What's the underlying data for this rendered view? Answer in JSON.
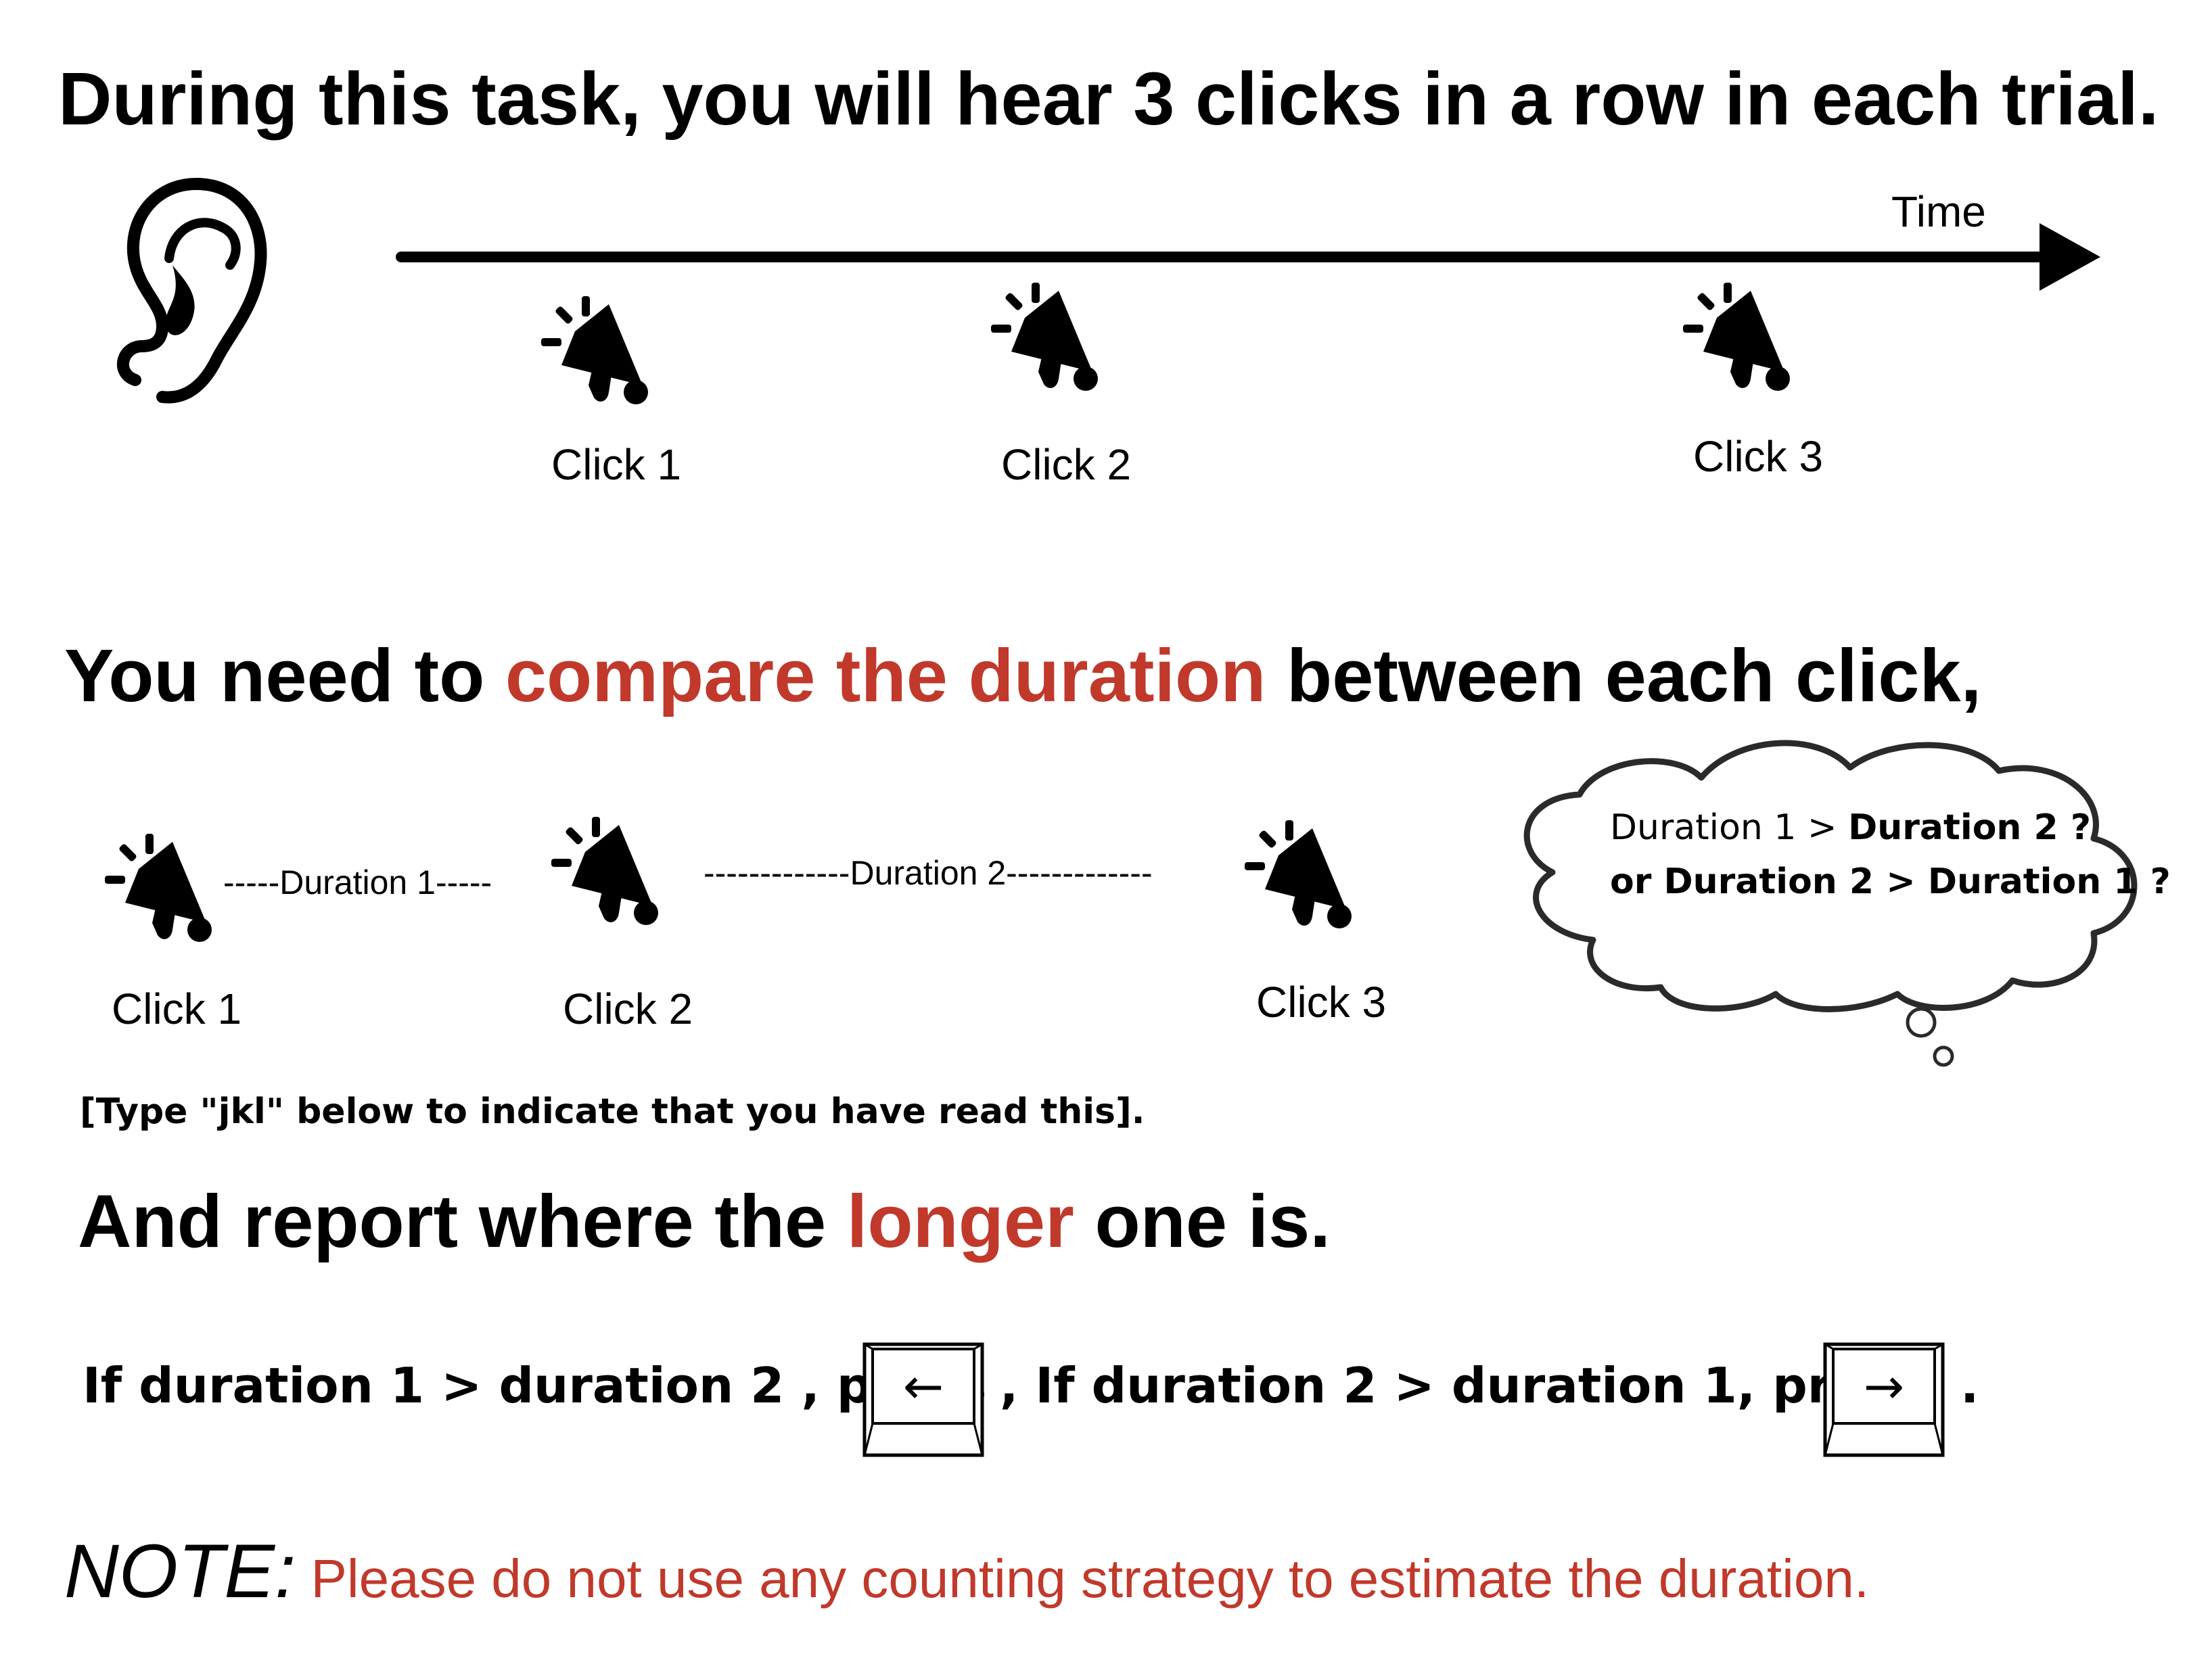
{
  "heading1": "During this task, you will hear 3 clicks in a row in each trial.",
  "timeline": {
    "axis_label": "Time",
    "clicks": [
      "Click 1",
      "Click 2",
      "Click 3"
    ]
  },
  "heading2": {
    "before": "You need to ",
    "highlight": "compare the duration",
    "after": " between each click,"
  },
  "compare_row": {
    "clicks": [
      "Click 1",
      "Click 2",
      "Click 3"
    ],
    "duration1": "-----Duration 1-----",
    "duration2": "-------------Duration 2-------------"
  },
  "thought_bubble": {
    "line1_a": "Duration 1 > ",
    "line1_b": "Duration 2 ?",
    "line2_a": "or Duration 2 > ",
    "line2_b": "Duration 1 ?"
  },
  "read_check": "[Type \"jkl\" below to indicate that you have read this].",
  "heading3": {
    "before": "And report where the ",
    "highlight": "longer",
    "after": " one is."
  },
  "instruction": {
    "part1": "If duration 1 > duration 2 , press",
    "key_left": "←",
    "part2": ",  If duration 2 > duration 1, press",
    "key_right": "→",
    "end": "."
  },
  "note": {
    "label": "NOTE:",
    "text": " Please do not use any counting strategy to estimate the duration."
  },
  "colors": {
    "accent": "#c0392b",
    "ink": "#000000"
  },
  "icons": [
    "ear-icon",
    "megaphone-icon",
    "keyboard-key-icon",
    "thought-cloud-icon"
  ]
}
